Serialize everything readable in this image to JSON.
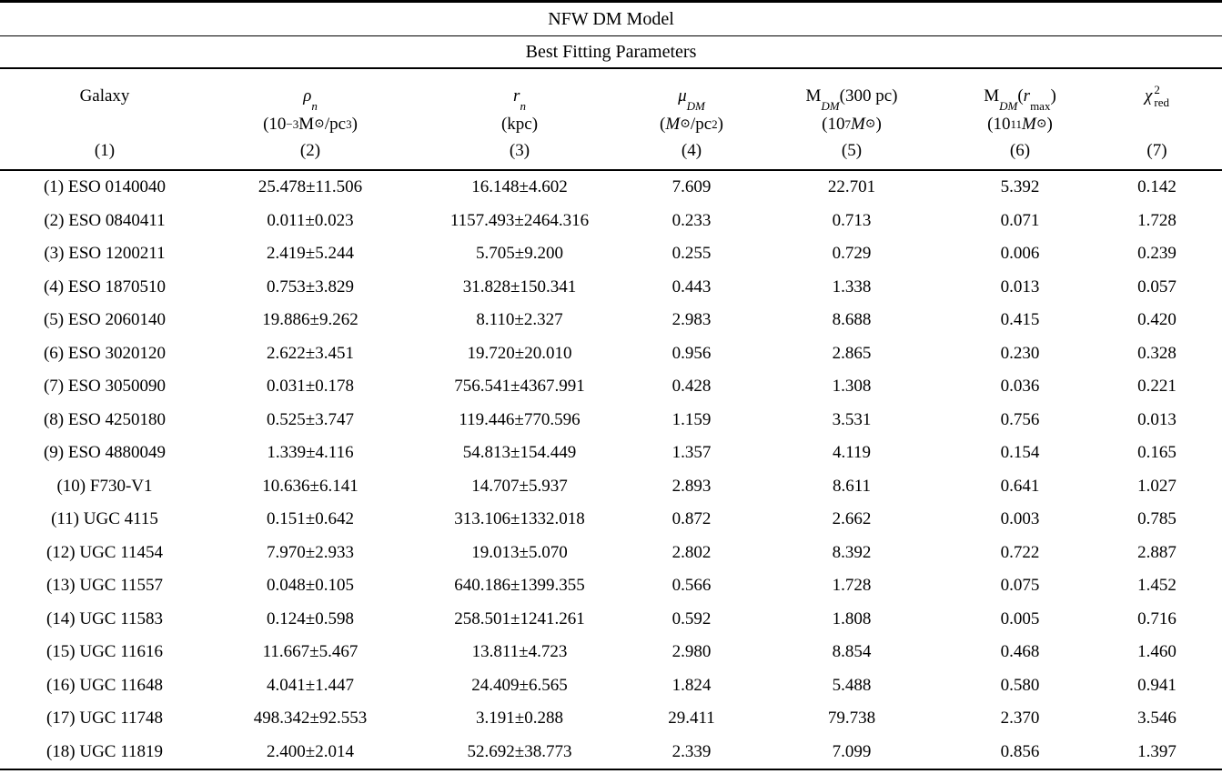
{
  "table": {
    "title": "NFW DM Model",
    "subtitle": "Best Fitting Parameters",
    "columns": [
      {
        "main": "Galaxy",
        "num": "(1)"
      },
      {
        "main": "ρ",
        "sub": "n",
        "u_pre": "(10",
        "u_sup": "−3",
        "u_m1": "M",
        "u_odot": "⊙",
        "u_m2": "/pc",
        "u_sup2": "3",
        "u_post": ")",
        "num": "(2)"
      },
      {
        "main": "r",
        "sub": "n",
        "u_pre": "(kpc)",
        "num": "(3)"
      },
      {
        "main": "μ",
        "sub": "DM",
        "u_pre": "(",
        "u_m1": "M",
        "u_odot": "⊙",
        "u_m2": "/pc",
        "u_sup2": "2",
        "u_post": ")",
        "num": "(4)"
      },
      {
        "main": "M",
        "sub": "DM",
        "rest": "(300 pc)",
        "u_pre": "(10",
        "u_sup": "7",
        "u_m1": "M",
        "u_odot": "⊙",
        "u_post": ")",
        "num": "(5)"
      },
      {
        "main": "M",
        "sub": "DM",
        "rest_pre": "(",
        "rest_sym": "r",
        "rest_sub": "max",
        "rest_post": ")",
        "u_pre": "(10",
        "u_sup": "11",
        "u_m1": "M",
        "u_odot": "⊙",
        "u_post": ")",
        "num": "(6)"
      },
      {
        "main": "χ",
        "sup": "2",
        "sub": "red",
        "num": "(7)"
      }
    ],
    "rows": [
      [
        "(1) ESO 0140040",
        "25.478±11.506",
        "16.148±4.602",
        "7.609",
        "22.701",
        "5.392",
        "0.142"
      ],
      [
        "(2) ESO 0840411",
        "0.011±0.023",
        "1157.493±2464.316",
        "0.233",
        "0.713",
        "0.071",
        "1.728"
      ],
      [
        "(3) ESO 1200211",
        "2.419±5.244",
        "5.705±9.200",
        "0.255",
        "0.729",
        "0.006",
        "0.239"
      ],
      [
        "(4) ESO 1870510",
        "0.753±3.829",
        "31.828±150.341",
        "0.443",
        "1.338",
        "0.013",
        "0.057"
      ],
      [
        "(5) ESO 2060140",
        "19.886±9.262",
        "8.110±2.327",
        "2.983",
        "8.688",
        "0.415",
        "0.420"
      ],
      [
        "(6) ESO 3020120",
        "2.622±3.451",
        "19.720±20.010",
        "0.956",
        "2.865",
        "0.230",
        "0.328"
      ],
      [
        "(7) ESO 3050090",
        "0.031±0.178",
        "756.541±4367.991",
        "0.428",
        "1.308",
        "0.036",
        "0.221"
      ],
      [
        "(8) ESO 4250180",
        "0.525±3.747",
        "119.446±770.596",
        "1.159",
        "3.531",
        "0.756",
        "0.013"
      ],
      [
        "(9) ESO 4880049",
        "1.339±4.116",
        "54.813±154.449",
        "1.357",
        "4.119",
        "0.154",
        "0.165"
      ],
      [
        "(10) F730-V1",
        "10.636±6.141",
        "14.707±5.937",
        "2.893",
        "8.611",
        "0.641",
        "1.027"
      ],
      [
        "(11) UGC 4115",
        "0.151±0.642",
        "313.106±1332.018",
        "0.872",
        "2.662",
        "0.003",
        "0.785"
      ],
      [
        "(12) UGC 11454",
        "7.970±2.933",
        "19.013±5.070",
        "2.802",
        "8.392",
        "0.722",
        "2.887"
      ],
      [
        "(13) UGC 11557",
        "0.048±0.105",
        "640.186±1399.355",
        "0.566",
        "1.728",
        "0.075",
        "1.452"
      ],
      [
        "(14) UGC 11583",
        "0.124±0.598",
        "258.501±1241.261",
        "0.592",
        "1.808",
        "0.005",
        "0.716"
      ],
      [
        "(15) UGC 11616",
        "11.667±5.467",
        "13.811±4.723",
        "2.980",
        "8.854",
        "0.468",
        "1.460"
      ],
      [
        "(16) UGC 11648",
        "4.041±1.447",
        "24.409±6.565",
        "1.824",
        "5.488",
        "0.580",
        "0.941"
      ],
      [
        "(17) UGC 11748",
        "498.342±92.553",
        "3.191±0.288",
        "29.411",
        "79.738",
        "2.370",
        "3.546"
      ],
      [
        "(18) UGC 11819",
        "2.400±2.014",
        "52.692±38.773",
        "2.339",
        "7.099",
        "0.856",
        "1.397"
      ]
    ]
  }
}
